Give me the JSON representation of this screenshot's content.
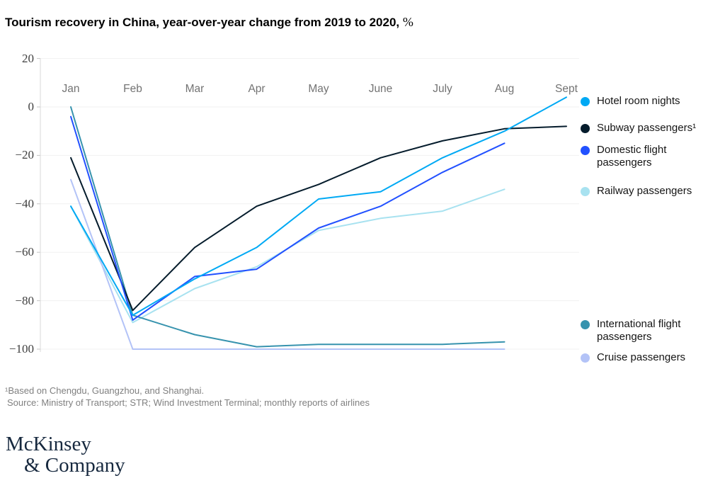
{
  "title": {
    "bold": "Tourism recovery in China, year-over-year change from 2019 to 2020,",
    "suffix": "%"
  },
  "chart_data": {
    "type": "line",
    "title": "Tourism recovery in China, year-over-year change from 2019 to 2020, %",
    "categories": [
      "Jan",
      "Feb",
      "Mar",
      "Apr",
      "May",
      "June",
      "July",
      "Aug",
      "Sept"
    ],
    "ylim": [
      -100,
      20
    ],
    "yticks": [
      20,
      0,
      -20,
      -40,
      -60,
      -80,
      -100
    ],
    "grid": "horizontal",
    "legend_position": "right",
    "series": [
      {
        "name": "Hotel room nights",
        "color": "#00A9F4",
        "values": [
          -41,
          -86,
          -71,
          -58,
          -38,
          -35,
          -21,
          -10,
          4
        ]
      },
      {
        "name": "Subway passengers¹",
        "color": "#051C2C",
        "values": [
          -21,
          -84,
          -58,
          -41,
          -32,
          -21,
          -14,
          -9,
          -8
        ]
      },
      {
        "name": "Domestic flight passengers",
        "color": "#2251FF",
        "values": [
          -4,
          -88,
          -70,
          -67,
          -50,
          -41,
          -27,
          -15,
          null
        ]
      },
      {
        "name": "Railway passengers",
        "color": "#A8E2F0",
        "values": [
          -41,
          -89,
          -75,
          -66,
          -51,
          -46,
          -43,
          -34,
          null
        ]
      },
      {
        "name": "International flight passengers",
        "color": "#3793AE",
        "values": [
          0,
          -86,
          -94,
          -99,
          -98,
          -98,
          -98,
          -97,
          null
        ]
      },
      {
        "name": "Cruise passengers",
        "color": "#B3C3F7",
        "values": [
          -30,
          -100,
          -100,
          -100,
          -100,
          -100,
          -100,
          -100,
          null
        ]
      }
    ]
  },
  "footnotes": {
    "line1": "¹Based on Chengdu, Guangzhou, and Shanghai.",
    "line2": "Source: Ministry of Transport; STR; Wind Investment Terminal; monthly reports of airlines"
  },
  "logo": {
    "line1": "McKinsey",
    "line2": "& Company"
  }
}
